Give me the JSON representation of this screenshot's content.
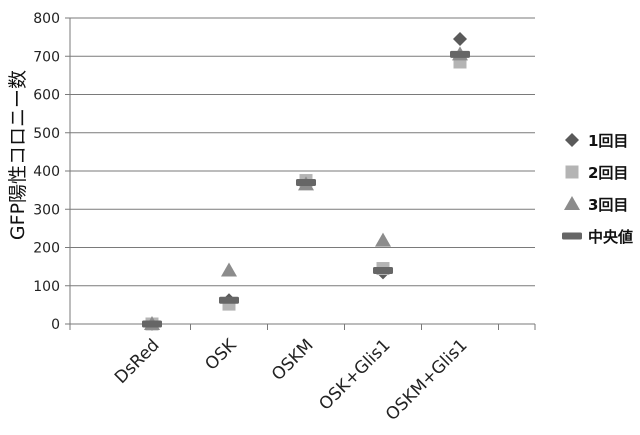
{
  "chart_data": {
    "type": "scatter",
    "categories": [
      "DsRed",
      "OSK",
      "OSKM",
      "OSK+Glis1",
      "OSKM+Glis1"
    ],
    "series": [
      {
        "name": "1回目",
        "marker": "diamond",
        "color": "#5a5a5a",
        "values": [
          0,
          62,
          370,
          135,
          745
        ]
      },
      {
        "name": "2回目",
        "marker": "square",
        "color": "#b4b4b4",
        "values": [
          0,
          52,
          375,
          145,
          685
        ]
      },
      {
        "name": "3回目",
        "marker": "triangle",
        "color": "#8c8c8c",
        "values": [
          0,
          140,
          365,
          218,
          705
        ]
      },
      {
        "name": "中央値",
        "marker": "dash",
        "color": "#666666",
        "values": [
          0,
          62,
          370,
          140,
          705
        ]
      }
    ],
    "ylabel": "GFP陽性コロニー数",
    "ylim": [
      0,
      800
    ],
    "yticks": [
      0,
      100,
      200,
      300,
      400,
      500,
      600,
      700,
      800
    ],
    "grid": true,
    "legend": "right"
  }
}
